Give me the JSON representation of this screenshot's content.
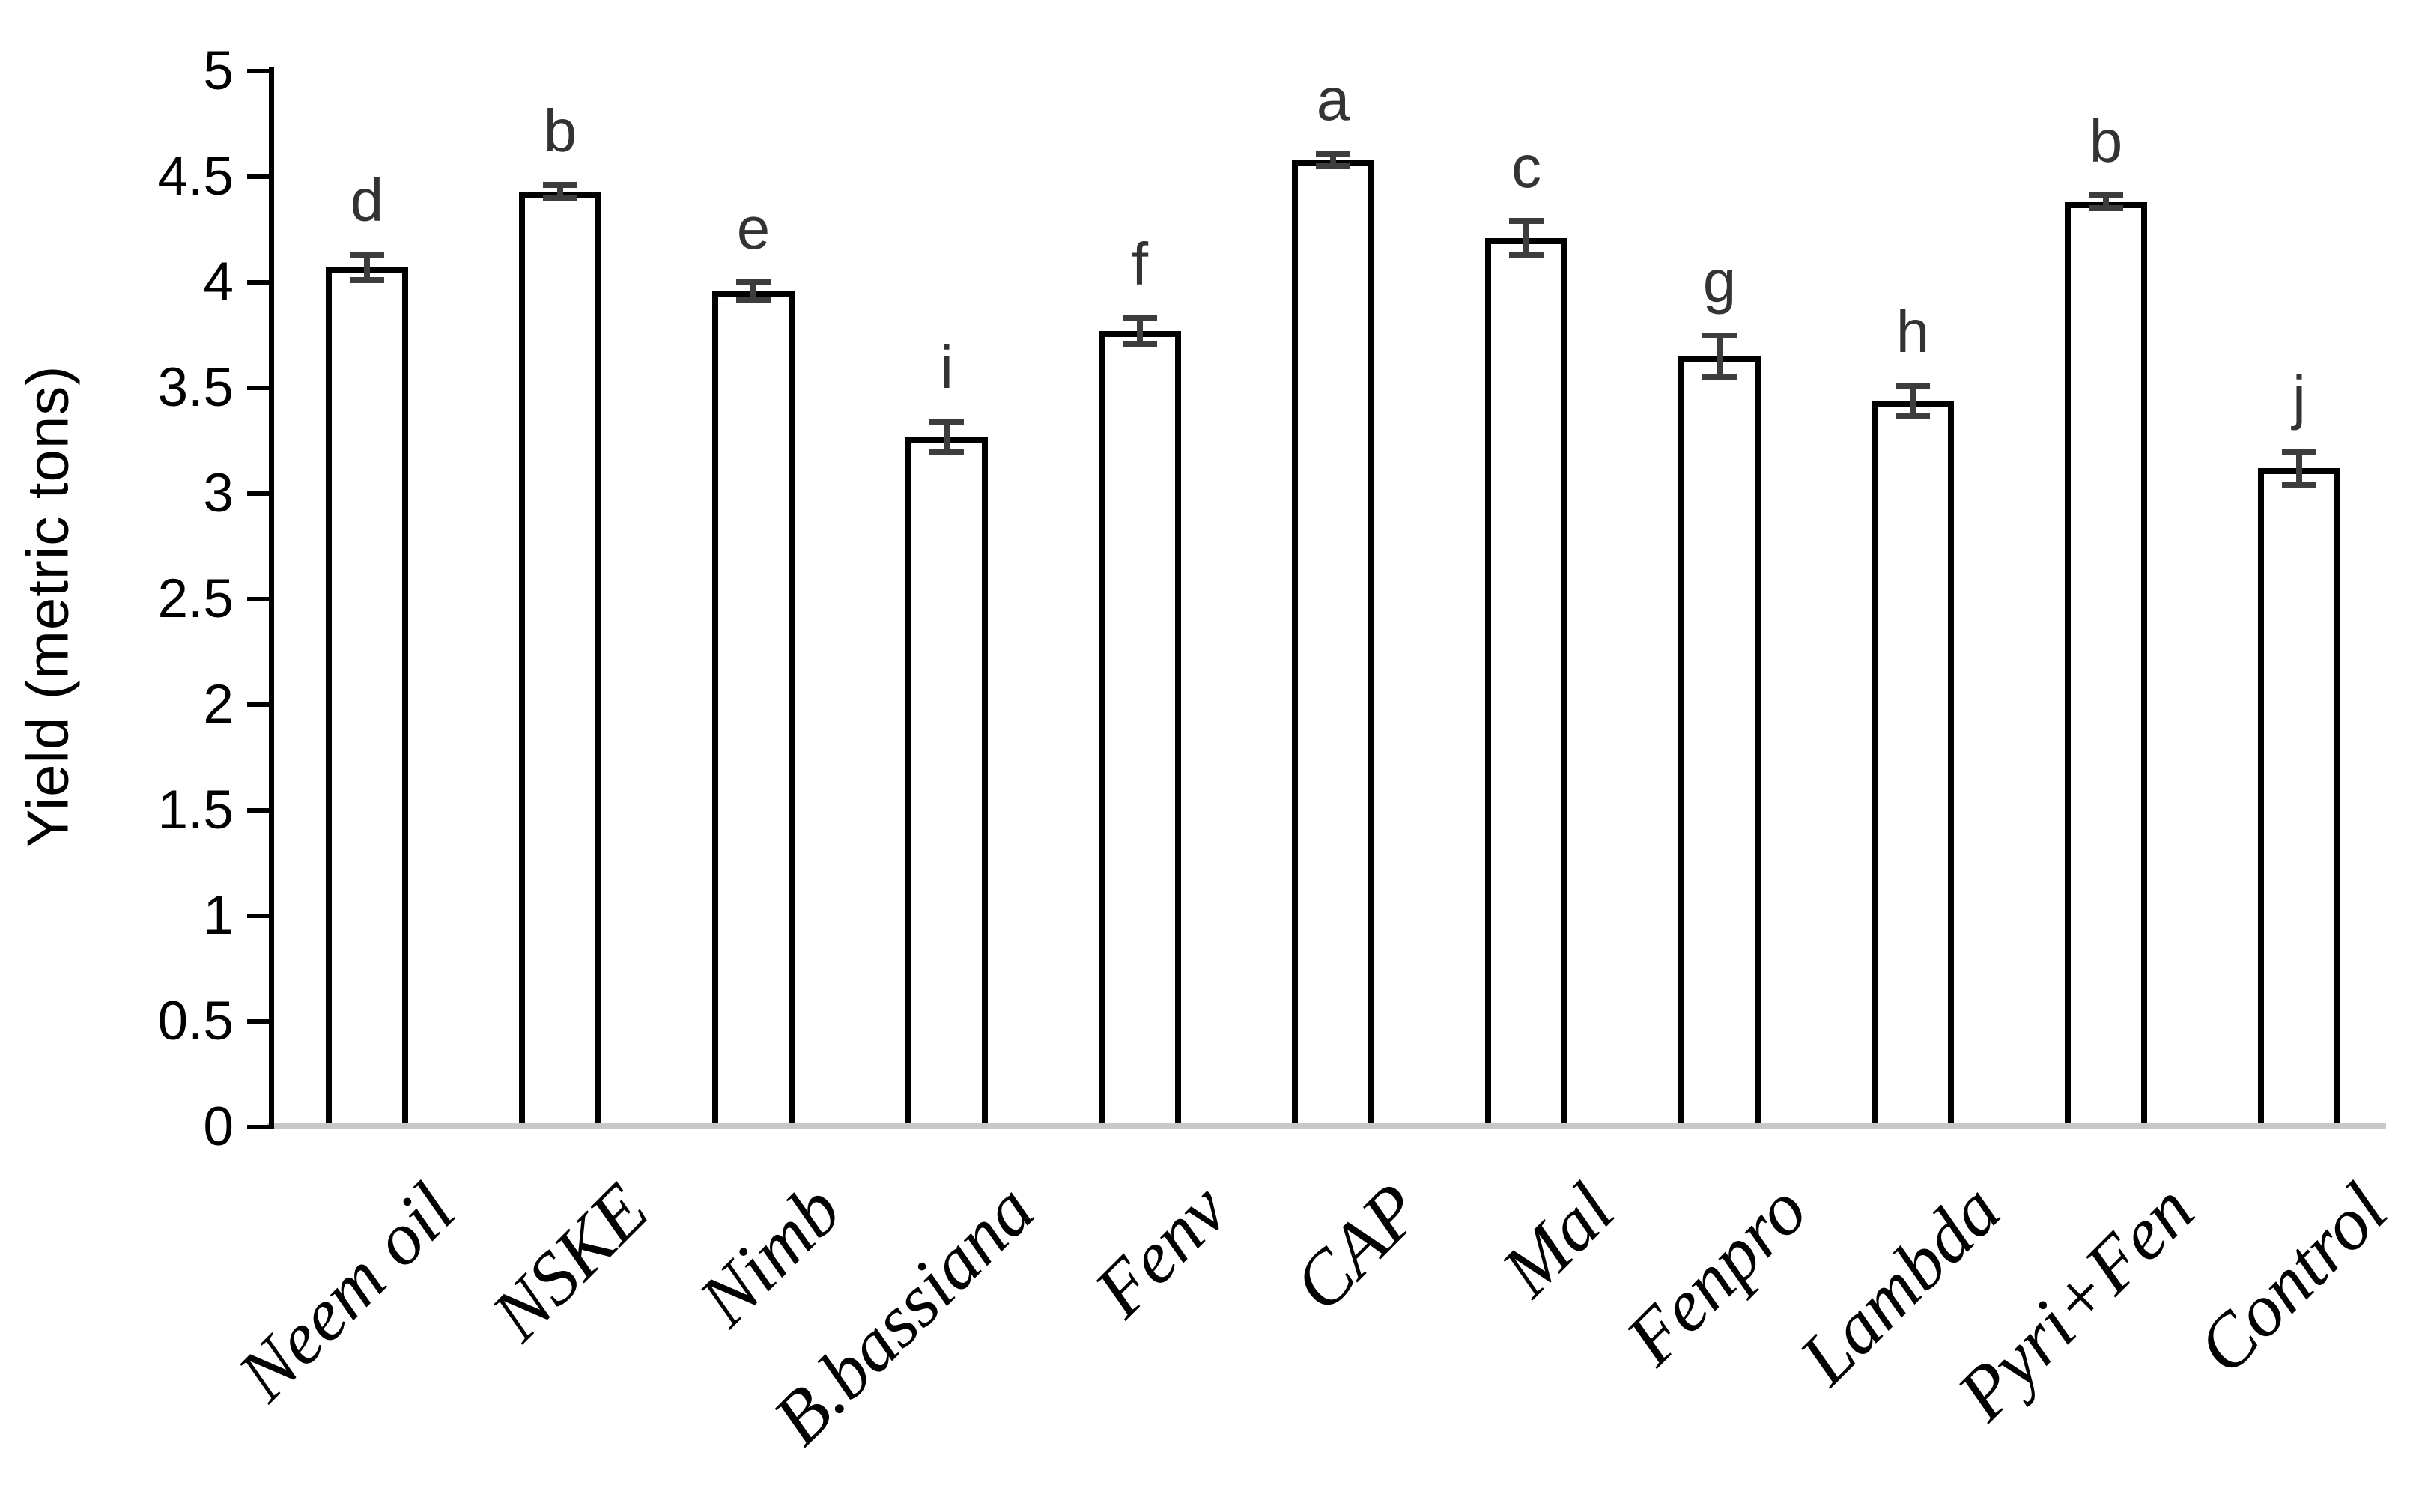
{
  "chart_data": {
    "type": "bar",
    "title": "",
    "ylabel": "Yield (metric tons)",
    "xlabel": "",
    "ylim": [
      0,
      5
    ],
    "ytick_step": 0.5,
    "ytick_labels": [
      "0",
      "0.5",
      "1",
      "1.5",
      "2",
      "2.5",
      "3",
      "3.5",
      "4",
      "4.5",
      "5"
    ],
    "grid": false,
    "legend_position": "none",
    "categories": [
      "Neem oil",
      "NSKE",
      "Nimb",
      "B.bassiana",
      "Fenv",
      "CAP",
      "Mal",
      "Fenpro",
      "Lambda",
      "Pyri+Fen",
      "Control"
    ],
    "series": [
      {
        "name": "Yield",
        "values": [
          4.07,
          4.43,
          3.96,
          3.27,
          3.77,
          4.58,
          4.21,
          3.65,
          3.44,
          4.38,
          3.12
        ],
        "errors": [
          0.06,
          0.03,
          0.04,
          0.07,
          0.06,
          0.03,
          0.08,
          0.1,
          0.07,
          0.03,
          0.08
        ],
        "sig_letters": [
          "d",
          "b",
          "e",
          "i",
          "f",
          "a",
          "c",
          "g",
          "h",
          "b",
          "j"
        ]
      }
    ],
    "colors": {
      "bar_fill": "#ffffff",
      "bar_border": "#000000",
      "error_bar": "#3d3d3d",
      "axis": "#000000",
      "baseline": "#c8c8c8",
      "sig_letter": "#333333",
      "text": "#000000"
    }
  }
}
